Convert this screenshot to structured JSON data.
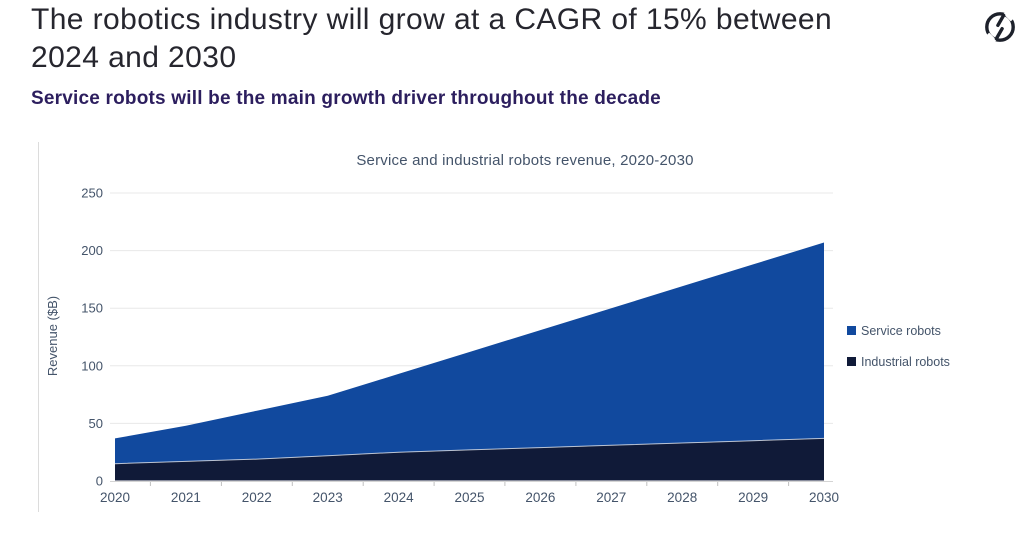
{
  "header": {
    "title_line1": "The robotics industry will grow at a CAGR of 15% between",
    "title_line2": "2024 and 2030",
    "subtitle": "Service robots will be the main growth driver throughout the decade"
  },
  "icons": {
    "logo": "broken-circle-monogram-logo"
  },
  "colors": {
    "title_text": "#26262e",
    "subtitle_text": "#2c1e5e",
    "chart_text": "#44546a",
    "service_blue": "#11499e",
    "industrial_navy": "#101a38",
    "gridline": "#e8e8e8",
    "axis_line": "#d4d4d4",
    "logo_ink": "#1d212b"
  },
  "chart_data": {
    "type": "area",
    "stacked": true,
    "title": "Service and industrial robots revenue, 2020-2030",
    "ylabel": "Revenue ($B)",
    "xlabel": "",
    "categories": [
      2020,
      2021,
      2022,
      2023,
      2024,
      2025,
      2026,
      2027,
      2028,
      2029,
      2030
    ],
    "series": [
      {
        "name": "Service robots",
        "color": "#11499e",
        "values": [
          22,
          31,
          42,
          52,
          68,
          85,
          102,
          119,
          136,
          153,
          170
        ]
      },
      {
        "name": "Industrial robots",
        "color": "#101a38",
        "values": [
          15,
          17,
          19,
          22,
          25,
          27,
          29,
          31,
          33,
          35,
          37
        ]
      }
    ],
    "stack_totals": [
      37,
      48,
      61,
      74,
      93,
      112,
      131,
      150,
      169,
      188,
      207
    ],
    "ylim": [
      0,
      250
    ],
    "yticks": [
      0,
      50,
      100,
      150,
      200,
      250
    ],
    "grid": true,
    "legend_position": "right"
  }
}
